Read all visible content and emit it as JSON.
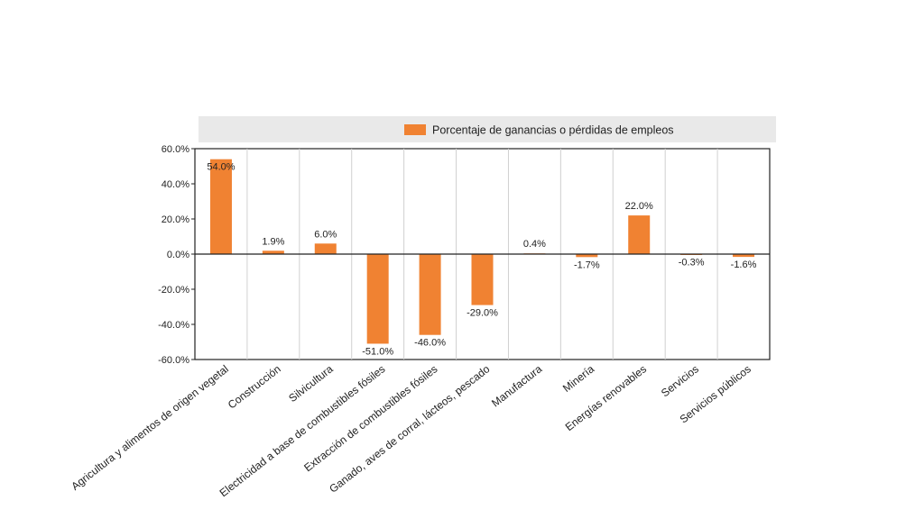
{
  "chart_data": {
    "type": "bar",
    "title": "",
    "xlabel": "",
    "ylabel": "",
    "ylim": [
      -60,
      60
    ],
    "yticks": [
      "60.0%",
      "40.0%",
      "20.0%",
      "0.0%",
      "-20.0%",
      "-40.0%",
      "-60.0%"
    ],
    "ytick_values": [
      60,
      40,
      20,
      0,
      -20,
      -40,
      -60
    ],
    "legend": {
      "position": "top",
      "label": "Porcentaje de ganancias o pérdidas de empleos"
    },
    "grid": "vertical-category-separators",
    "categories": [
      "Agricultura y alimentos de origen vegetal",
      "Construcción",
      "Silvicultura",
      "Electricidad a base de combustibles fósiles",
      "Extracción de combustibles fósiles",
      "Ganado, aves de corral, lácteos, pescado",
      "Manufactura",
      "Minería",
      "Energías renovables",
      "Servicios",
      "Servicios públicos"
    ],
    "series": [
      {
        "name": "Porcentaje de ganancias o pérdidas de empleos",
        "color": "#F08232",
        "values": [
          54.0,
          1.9,
          6.0,
          -51.0,
          -46.0,
          -29.0,
          0.4,
          -1.7,
          22.0,
          -0.3,
          -1.6
        ],
        "labels": [
          "54.0%",
          "1.9%",
          "6.0%",
          "-51.0%",
          "-46.0%",
          "-29.0%",
          "0.4%",
          "-1.7%",
          "22.0%",
          "-0.3%",
          "-1.6%"
        ]
      }
    ]
  }
}
